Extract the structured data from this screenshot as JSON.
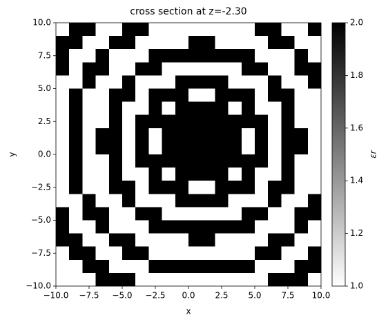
{
  "chart_data": {
    "type": "heatmap",
    "title": "cross section at z=-2.30",
    "x_label": "x",
    "y_label": "y",
    "colorbar_label": "εr",
    "xlim": [
      -10,
      10
    ],
    "ylim": [
      -10,
      10
    ],
    "xticks": [
      {
        "value": -10,
        "label": "−10.0"
      },
      {
        "value": -7.5,
        "label": "−7.5"
      },
      {
        "value": -5,
        "label": "−5.0"
      },
      {
        "value": -2.5,
        "label": "−2.5"
      },
      {
        "value": 0,
        "label": "0.0"
      },
      2.5,
      {
        "value": 5,
        "label": "5.0"
      },
      7.5,
      {
        "value": 10,
        "label": "10.0"
      }
    ],
    "yticks": [
      {
        "value": -10,
        "label": "−10.0"
      },
      {
        "value": -7.5,
        "label": "−7.5"
      },
      {
        "value": -5,
        "label": "−5.0"
      },
      {
        "value": -2.5,
        "label": "−2.5"
      },
      {
        "value": 0,
        "label": "0.0"
      },
      2.5,
      {
        "value": 5,
        "label": "5.0"
      },
      7.5,
      {
        "value": 10,
        "label": "10.0"
      }
    ],
    "clim": [
      1,
      2
    ],
    "cticks": [
      {
        "value": 1,
        "label": "1.0"
      },
      1.2,
      1.4,
      1.6,
      1.8,
      {
        "value": 2,
        "label": "2.0"
      }
    ],
    "colormap": [
      "#ffffff",
      "#000000"
    ],
    "z": [
      [
        1,
        2,
        2,
        1,
        1,
        2,
        2,
        1,
        1,
        1,
        1,
        1,
        1,
        1,
        1,
        2,
        2,
        1,
        1,
        2
      ],
      [
        2,
        2,
        1,
        1,
        2,
        2,
        1,
        1,
        1,
        1,
        2,
        2,
        1,
        1,
        1,
        1,
        2,
        2,
        1,
        1
      ],
      [
        2,
        1,
        1,
        2,
        1,
        1,
        1,
        2,
        2,
        2,
        2,
        2,
        2,
        2,
        2,
        1,
        1,
        1,
        2,
        1
      ],
      [
        2,
        1,
        2,
        2,
        1,
        1,
        2,
        2,
        1,
        1,
        1,
        1,
        1,
        1,
        2,
        2,
        1,
        1,
        2,
        2
      ],
      [
        1,
        1,
        2,
        1,
        1,
        2,
        1,
        1,
        1,
        2,
        2,
        2,
        2,
        1,
        1,
        1,
        2,
        1,
        1,
        2
      ],
      [
        1,
        2,
        1,
        1,
        2,
        2,
        1,
        2,
        2,
        2,
        1,
        1,
        2,
        2,
        2,
        1,
        2,
        2,
        1,
        1
      ],
      [
        1,
        2,
        1,
        1,
        2,
        1,
        1,
        2,
        1,
        2,
        2,
        2,
        2,
        1,
        2,
        1,
        1,
        2,
        1,
        1
      ],
      [
        1,
        2,
        1,
        1,
        2,
        1,
        2,
        2,
        2,
        2,
        2,
        2,
        2,
        2,
        2,
        2,
        1,
        2,
        1,
        1
      ],
      [
        1,
        2,
        1,
        2,
        2,
        1,
        2,
        1,
        2,
        2,
        2,
        2,
        2,
        2,
        1,
        2,
        1,
        2,
        2,
        1
      ],
      [
        1,
        2,
        1,
        2,
        2,
        1,
        2,
        1,
        2,
        2,
        2,
        2,
        2,
        2,
        1,
        2,
        1,
        2,
        2,
        1
      ],
      [
        1,
        2,
        1,
        1,
        2,
        1,
        2,
        2,
        2,
        2,
        2,
        2,
        2,
        2,
        2,
        2,
        1,
        2,
        1,
        1
      ],
      [
        1,
        2,
        1,
        1,
        2,
        1,
        1,
        2,
        1,
        2,
        2,
        2,
        2,
        1,
        2,
        1,
        1,
        2,
        1,
        1
      ],
      [
        1,
        2,
        1,
        1,
        2,
        2,
        1,
        2,
        2,
        2,
        1,
        1,
        2,
        2,
        2,
        1,
        2,
        2,
        1,
        1
      ],
      [
        1,
        1,
        2,
        1,
        1,
        2,
        1,
        1,
        1,
        2,
        2,
        2,
        2,
        1,
        1,
        1,
        2,
        1,
        1,
        2
      ],
      [
        2,
        1,
        2,
        2,
        1,
        1,
        2,
        2,
        1,
        1,
        1,
        1,
        1,
        1,
        2,
        2,
        1,
        1,
        2,
        2
      ],
      [
        2,
        1,
        1,
        2,
        1,
        1,
        1,
        2,
        2,
        2,
        2,
        2,
        2,
        2,
        2,
        1,
        1,
        1,
        2,
        1
      ],
      [
        2,
        2,
        1,
        1,
        2,
        2,
        1,
        1,
        1,
        1,
        2,
        2,
        1,
        1,
        1,
        1,
        2,
        2,
        1,
        1
      ],
      [
        1,
        2,
        2,
        1,
        1,
        2,
        2,
        1,
        1,
        1,
        1,
        1,
        1,
        1,
        1,
        2,
        2,
        1,
        1,
        2
      ],
      [
        1,
        1,
        2,
        2,
        1,
        1,
        1,
        2,
        2,
        2,
        2,
        2,
        2,
        2,
        2,
        1,
        1,
        1,
        2,
        2
      ],
      [
        1,
        1,
        1,
        2,
        2,
        2,
        1,
        1,
        1,
        1,
        1,
        1,
        1,
        1,
        1,
        1,
        2,
        2,
        2,
        1
      ]
    ]
  }
}
